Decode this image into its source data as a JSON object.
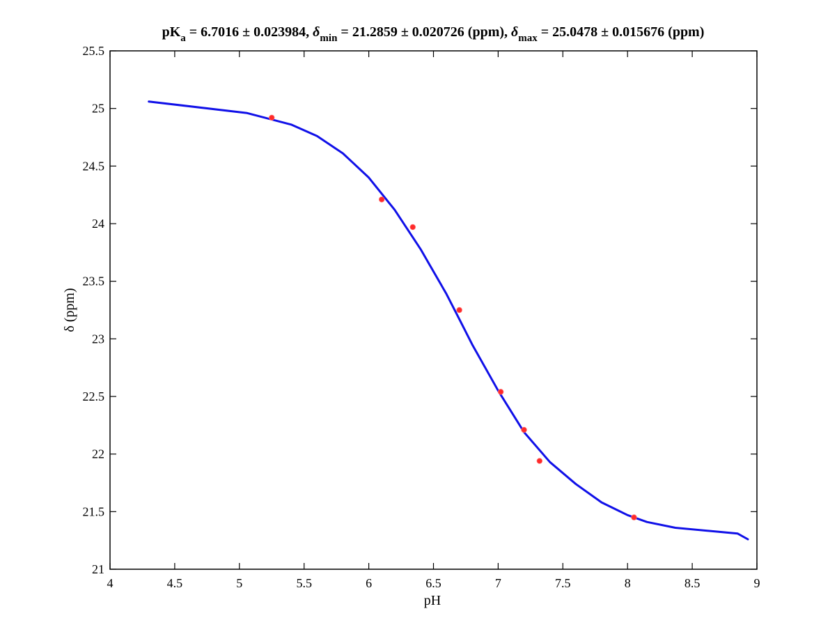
{
  "chart_data": {
    "type": "scatter",
    "title": {
      "pka_prefix": "pK",
      "pka_sub": "a",
      "pka_rest": " = 6.7016 ± 0.023984, ",
      "dmin_symbol": "δ",
      "dmin_sub": "min",
      "dmin_rest": " = 21.2859 ± 0.020726 (ppm), ",
      "dmax_symbol": "δ",
      "dmax_sub": "max",
      "dmax_rest": " = 25.0478 ± 0.015676 (ppm)"
    },
    "xlabel": "pH",
    "ylabel": "δ (ppm)",
    "xlim": [
      4,
      9
    ],
    "ylim": [
      21,
      25.5
    ],
    "xticks": [
      4,
      4.5,
      5,
      5.5,
      6,
      6.5,
      7,
      7.5,
      8,
      8.5,
      9
    ],
    "xtick_labels": [
      "4",
      "4.5",
      "5",
      "5.5",
      "6",
      "6.5",
      "7",
      "7.5",
      "8",
      "8.5",
      "9"
    ],
    "yticks": [
      21,
      21.5,
      22,
      22.5,
      23,
      23.5,
      24,
      24.5,
      25,
      25.5
    ],
    "ytick_labels": [
      "21",
      "21.5",
      "22",
      "22.5",
      "23",
      "23.5",
      "24",
      "24.5",
      "25",
      "25.5"
    ],
    "grid": false,
    "series": [
      {
        "kind": "points",
        "color": "#ff2a2a",
        "x": [
          5.25,
          6.1,
          6.34,
          6.7,
          7.02,
          7.2,
          7.32,
          8.05
        ],
        "y": [
          24.92,
          24.21,
          23.97,
          23.25,
          22.54,
          22.21,
          21.94,
          21.45
        ]
      },
      {
        "kind": "line",
        "color": "#1010e8",
        "x": [
          4.3,
          5.06,
          5.4,
          5.6,
          5.8,
          6.0,
          6.2,
          6.4,
          6.6,
          6.7,
          6.8,
          7.0,
          7.2,
          7.4,
          7.6,
          7.8,
          8.0,
          8.15,
          8.37,
          8.85,
          8.93
        ],
        "y": [
          25.06,
          24.96,
          24.86,
          24.76,
          24.61,
          24.4,
          24.12,
          23.78,
          23.39,
          23.17,
          22.95,
          22.55,
          22.19,
          21.93,
          21.74,
          21.58,
          21.47,
          21.41,
          21.36,
          21.31,
          21.26
        ]
      }
    ]
  }
}
